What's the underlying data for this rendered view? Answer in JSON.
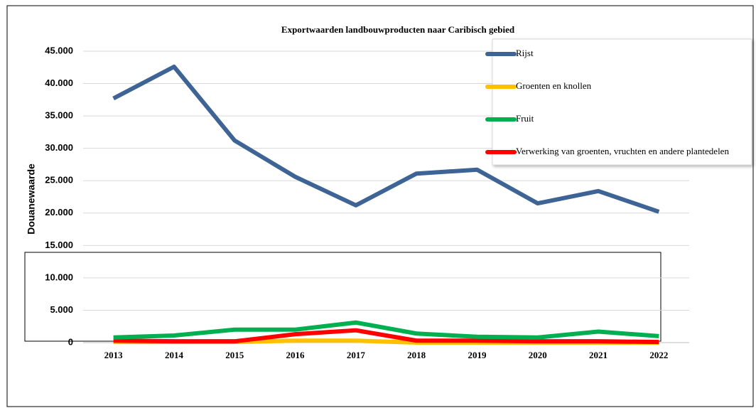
{
  "chart_data": {
    "type": "line",
    "title": "Exportwaarden landbouwproducten naar Caribisch gebied",
    "y_label": "Douanewaarde",
    "x": [
      "2013",
      "2014",
      "2015",
      "2016",
      "2017",
      "2018",
      "2019",
      "2020",
      "2021",
      "2022"
    ],
    "series": [
      {
        "name": "Rijst",
        "color": "#3e6496",
        "values": [
          37700,
          42600,
          31200,
          25600,
          21200,
          26100,
          26700,
          21500,
          23400,
          20200
        ]
      },
      {
        "name": "Groenten en knollen",
        "color": "#ffc000",
        "values": [
          100,
          100,
          100,
          300,
          300,
          0,
          0,
          0,
          0,
          0
        ]
      },
      {
        "name": "Fruit",
        "color": "#00b050",
        "values": [
          800,
          1100,
          2000,
          2000,
          3100,
          1400,
          900,
          800,
          1700,
          1000
        ]
      },
      {
        "name": "Verwerking van groenten, vruchten en andere plantedelen",
        "color": "#ff0000",
        "values": [
          300,
          200,
          200,
          1300,
          1900,
          300,
          300,
          200,
          200,
          100
        ]
      }
    ],
    "ylim": [
      0,
      45000
    ],
    "yticks": [
      0,
      {
        "value": 5000,
        "label": "5.000"
      },
      {
        "value": 10000,
        "label": "10.000"
      },
      {
        "value": 15000,
        "label": "15.000"
      },
      {
        "value": 20000,
        "label": "20.000"
      },
      {
        "value": 25000,
        "label": "25.000"
      },
      {
        "value": 30000,
        "label": "30.000"
      },
      {
        "value": 35000,
        "label": "35.000"
      },
      {
        "value": 40000,
        "label": "40.000"
      },
      {
        "value": 45000,
        "label": "45.000"
      }
    ],
    "grid": true
  }
}
